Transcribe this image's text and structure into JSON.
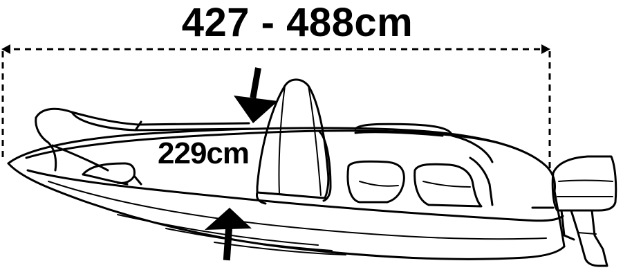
{
  "dimensions": {
    "length": "427 - 488cm",
    "beam": "229cm"
  },
  "colors": {
    "line": "#000000",
    "windshield_fill": "#f3f3f3",
    "background": "#ffffff"
  }
}
